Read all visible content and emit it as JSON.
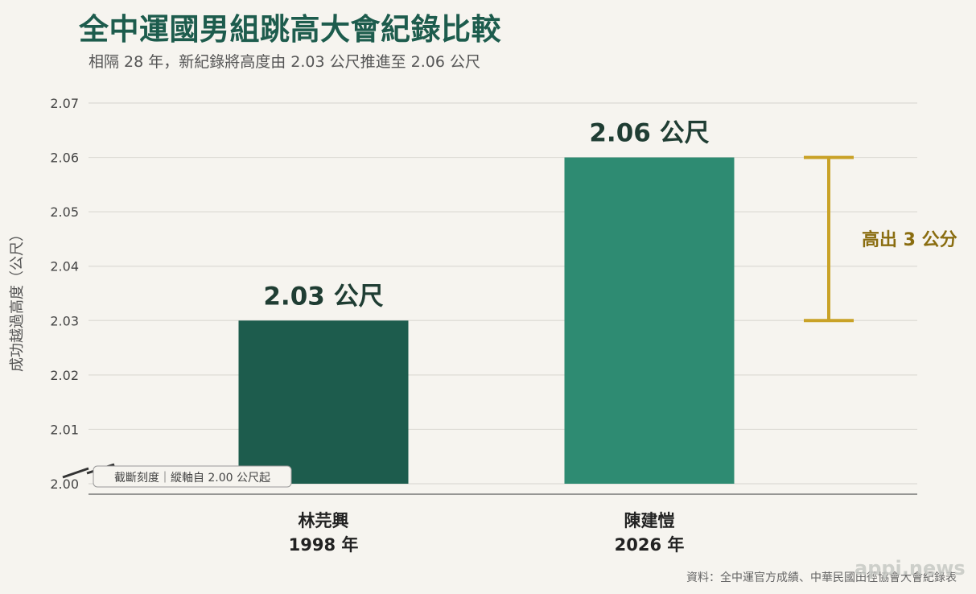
{
  "title": "全中運國男組跳高大會紀錄比較",
  "subtitle": "相隔 28 年，新紀錄將高度由 2.03 公尺推進至 2.06 公尺",
  "source": "資料：全中運官方成績、中華民國田徑協會大會紀錄表",
  "watermark": "appi.news",
  "colors": {
    "title": "#1d5c4d",
    "bar_old": "#1d5c4d",
    "bar_new": "#2e8b72",
    "accent": "#c9a227",
    "accent_text": "#8a6d10",
    "grid": "#dddbd5",
    "background": "#f6f4ef"
  },
  "chart_data": {
    "type": "bar",
    "ylabel": "成功越過高度（公尺）",
    "ylim": [
      2.0,
      2.07
    ],
    "yticks": [
      "2.00",
      "2.01",
      "2.02",
      "2.03",
      "2.04",
      "2.05",
      "2.06",
      "2.07"
    ],
    "categories": [
      {
        "name": "林芫興",
        "year": "1998 年"
      },
      {
        "name": "陳建愷",
        "year": "2026 年"
      }
    ],
    "values": [
      2.03,
      2.06
    ],
    "value_labels": [
      "2.03 公尺",
      "2.06 公尺"
    ],
    "grid": true,
    "annotation": {
      "text": "高出 3 公分",
      "from": 2.03,
      "to": 2.06
    },
    "axis_break_note": "截斷刻度｜縱軸自 2.00 公尺起"
  }
}
